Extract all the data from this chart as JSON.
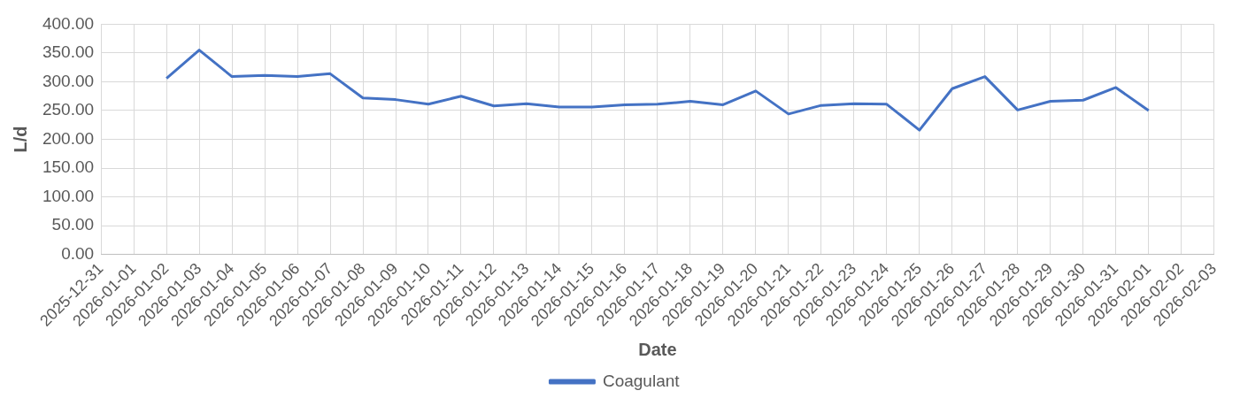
{
  "chart_data": {
    "type": "line",
    "xlabel": "Date",
    "ylabel": "L/d",
    "categories": [
      "2025-12-31",
      "2026-01-01",
      "2026-01-02",
      "2026-01-03",
      "2026-01-04",
      "2026-01-05",
      "2026-01-06",
      "2026-01-07",
      "2026-01-08",
      "2026-01-09",
      "2026-01-10",
      "2026-01-11",
      "2026-01-12",
      "2026-01-13",
      "2026-01-14",
      "2026-01-15",
      "2026-01-16",
      "2026-01-17",
      "2026-01-18",
      "2026-01-19",
      "2026-01-20",
      "2026-01-21",
      "2026-01-22",
      "2026-01-23",
      "2026-01-24",
      "2026-01-25",
      "2026-01-26",
      "2026-01-27",
      "2026-01-28",
      "2026-01-29",
      "2026-01-30",
      "2026-01-31",
      "2026-02-01",
      "2026-02-02",
      "2026-02-03"
    ],
    "series": [
      {
        "name": "Coagulant",
        "color": "#4472c4",
        "values": [
          null,
          null,
          306,
          355,
          309,
          311,
          309,
          314,
          272,
          269,
          261,
          275,
          258,
          262,
          256,
          256,
          260,
          261,
          266,
          260,
          284,
          244,
          259,
          262,
          261,
          216,
          288,
          309,
          251,
          266,
          268,
          290,
          250,
          null,
          null
        ]
      }
    ],
    "ylim": [
      0,
      400
    ],
    "yticks": [
      {
        "value": 0,
        "label": "0.00"
      },
      {
        "value": 50,
        "label": "50.00"
      },
      {
        "value": 100,
        "label": "100.00"
      },
      {
        "value": 150,
        "label": "150.00"
      },
      {
        "value": 200,
        "label": "200.00"
      },
      {
        "value": 250,
        "label": "250.00"
      },
      {
        "value": 300,
        "label": "300.00"
      },
      {
        "value": 350,
        "label": "350.00"
      },
      {
        "value": 400,
        "label": "400.00"
      }
    ],
    "grid": true,
    "legend": "bottom",
    "marker": "none",
    "line_style": "solid"
  }
}
